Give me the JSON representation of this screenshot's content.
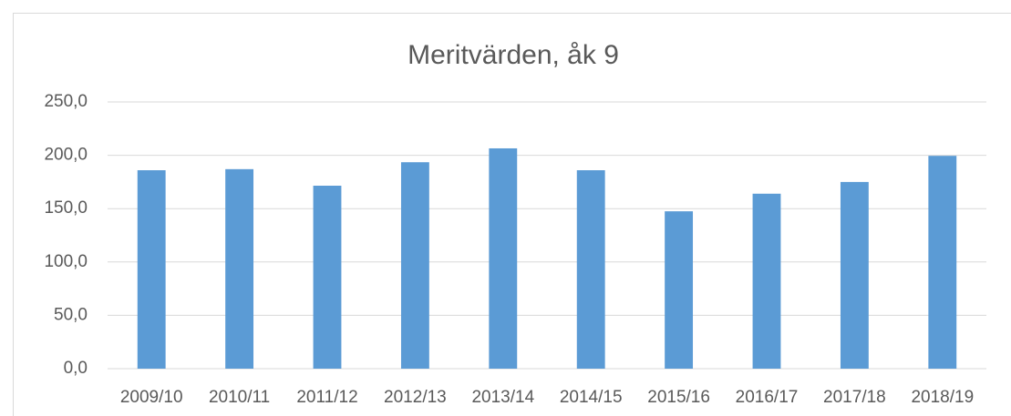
{
  "chart_data": {
    "type": "bar",
    "title": "Meritvärden, åk 9",
    "categories": [
      "2009/10",
      "2010/11",
      "2011/12",
      "2012/13",
      "2013/14",
      "2014/15",
      "2015/16",
      "2016/17",
      "2017/18",
      "2018/19"
    ],
    "values": [
      186,
      187,
      171.5,
      193.5,
      206.5,
      186,
      147.5,
      164,
      175,
      199.5
    ],
    "color": "#5b9bd5",
    "ylim": [
      0,
      250
    ],
    "yticks": [
      {
        "value": 0,
        "label": "0,0"
      },
      {
        "value": 50,
        "label": "50,0"
      },
      {
        "value": 100,
        "label": "100,0"
      },
      {
        "value": 150,
        "label": "150,0"
      },
      {
        "value": 200,
        "label": "200,0"
      },
      {
        "value": 250,
        "label": "250,0"
      }
    ],
    "grid": true
  }
}
